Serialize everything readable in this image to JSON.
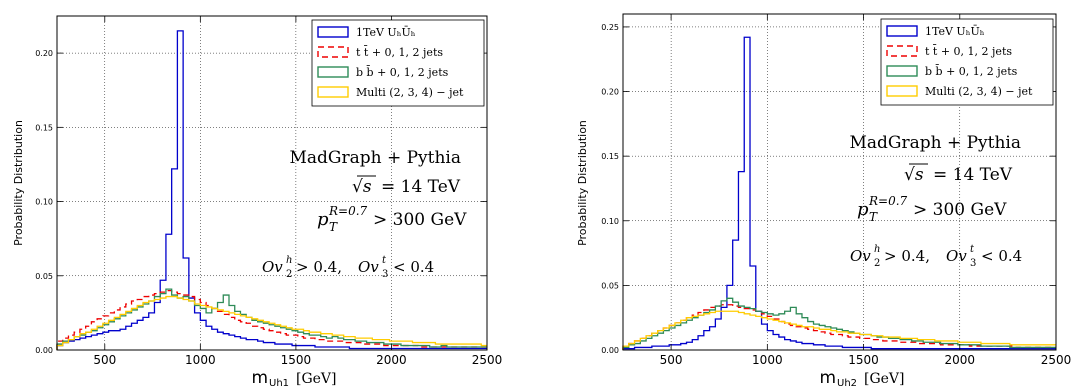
{
  "chart_data": [
    {
      "type": "histogram",
      "id": "left",
      "xlabel_main": "m",
      "xlabel_sub": "Uh1",
      "xlabel_unit": "[GeV]",
      "ylabel": "Probability Distribution",
      "xlim": [
        250,
        2500
      ],
      "ylim": [
        0,
        0.225
      ],
      "xticks": [
        500,
        1000,
        1500,
        2000,
        2500
      ],
      "xtick_labels": [
        "500",
        "1000",
        "1500",
        "2000",
        "2500"
      ],
      "yticks": [
        0,
        0.05,
        0.1,
        0.15,
        0.2
      ],
      "ytick_labels": [
        "0.00",
        "0.05",
        "0.10",
        "0.15",
        "0.20"
      ],
      "grid": true,
      "legend_position": "top-right",
      "annotations": {
        "generator": "MadGraph + Pythia",
        "sqrt": "√s",
        "energy": "= 14 TeV",
        "pt_base": "p",
        "pt_sup": "R=0.7",
        "pt_sub": "T",
        "pt_rest": "> 300 GeV",
        "cut_a_base": "Ov",
        "cut_a_sup": "h",
        "cut_a_sub": "2",
        "cut_a_rest": "> 0.4,",
        "cut_b_base": "Ov",
        "cut_b_sup": "t",
        "cut_b_sub": "3",
        "cut_b_rest": "< 0.4"
      },
      "bin_start": 250,
      "bin_width": 30,
      "series": [
        {
          "name": "1TeV UₕŪₕ",
          "color": "#0000cc",
          "dash": "",
          "values": [
            0.003,
            0.005,
            0.006,
            0.007,
            0.008,
            0.009,
            0.01,
            0.011,
            0.012,
            0.013,
            0.013,
            0.014,
            0.016,
            0.018,
            0.02,
            0.022,
            0.025,
            0.032,
            0.047,
            0.078,
            0.122,
            0.215,
            0.062,
            0.035,
            0.025,
            0.02,
            0.016,
            0.014,
            0.012,
            0.011,
            0.01,
            0.009,
            0.008,
            0.007,
            0.007,
            0.006,
            0.005,
            0.005,
            0.004,
            0.004,
            0.004,
            0.003,
            0.003,
            0.003,
            0.003,
            0.002,
            0.002,
            0.002,
            0.002,
            0.002,
            0.002,
            0.001,
            0.001,
            0.001,
            0.001,
            0.001,
            0.001,
            0.001,
            0.001,
            0.001,
            0.001,
            0.001,
            0.001,
            0.001,
            0.001,
            0.001,
            0.001,
            0.001,
            0.001,
            0.001,
            0.001,
            0.001,
            0.001,
            0.001,
            0.001
          ]
        },
        {
          "name": "t t̄ + 0, 1, 2  jets",
          "color": "#ee0000",
          "dash": "6,4",
          "values": [
            0.006,
            0.008,
            0.01,
            0.012,
            0.014,
            0.016,
            0.019,
            0.021,
            0.023,
            0.025,
            0.027,
            0.029,
            0.031,
            0.033,
            0.034,
            0.036,
            0.037,
            0.038,
            0.039,
            0.04,
            0.039,
            0.038,
            0.037,
            0.036,
            0.034,
            0.032,
            0.03,
            0.028,
            0.026,
            0.024,
            0.022,
            0.02,
            0.019,
            0.018,
            0.016,
            0.015,
            0.014,
            0.013,
            0.012,
            0.011,
            0.01,
            0.01,
            0.009,
            0.008,
            0.008,
            0.007,
            0.007,
            0.006,
            0.006,
            0.006,
            0.005,
            0.005,
            0.005,
            0.004,
            0.004,
            0.004,
            0.004,
            0.003,
            0.003,
            0.003,
            0.003,
            0.003,
            0.003,
            0.002,
            0.002,
            0.002,
            0.002,
            0.002,
            0.002,
            0.002,
            0.002,
            0.002,
            0.002,
            0.002,
            0.002
          ]
        },
        {
          "name": "b b̄ + 0, 1, 2  jets",
          "color": "#2e8b57",
          "dash": "",
          "values": [
            0.004,
            0.006,
            0.007,
            0.009,
            0.01,
            0.012,
            0.013,
            0.015,
            0.017,
            0.019,
            0.021,
            0.023,
            0.025,
            0.027,
            0.029,
            0.031,
            0.033,
            0.036,
            0.038,
            0.041,
            0.037,
            0.035,
            0.036,
            0.033,
            0.03,
            0.028,
            0.025,
            0.028,
            0.032,
            0.037,
            0.03,
            0.026,
            0.024,
            0.022,
            0.02,
            0.019,
            0.018,
            0.017,
            0.016,
            0.015,
            0.014,
            0.013,
            0.012,
            0.011,
            0.01,
            0.01,
            0.009,
            0.008,
            0.009,
            0.008,
            0.007,
            0.007,
            0.006,
            0.006,
            0.005,
            0.005,
            0.005,
            0.004,
            0.004,
            0.004,
            0.003,
            0.003,
            0.003,
            0.003,
            0.003,
            0.002,
            0.002,
            0.003,
            0.002,
            0.002,
            0.002,
            0.002,
            0.002,
            0.002,
            0.002
          ]
        },
        {
          "name": "Multi (2, 3, 4) − jet",
          "color": "#ffcc00",
          "dash": "",
          "values": [
            0.003,
            0.005,
            0.007,
            0.009,
            0.011,
            0.012,
            0.014,
            0.016,
            0.018,
            0.02,
            0.022,
            0.024,
            0.026,
            0.028,
            0.03,
            0.032,
            0.033,
            0.034,
            0.035,
            0.036,
            0.036,
            0.035,
            0.034,
            0.033,
            0.031,
            0.03,
            0.029,
            0.028,
            0.027,
            0.026,
            0.025,
            0.024,
            0.023,
            0.022,
            0.021,
            0.02,
            0.019,
            0.018,
            0.017,
            0.016,
            0.015,
            0.014,
            0.014,
            0.013,
            0.012,
            0.012,
            0.011,
            0.011,
            0.01,
            0.01,
            0.009,
            0.009,
            0.008,
            0.008,
            0.008,
            0.007,
            0.007,
            0.007,
            0.006,
            0.006,
            0.006,
            0.006,
            0.005,
            0.005,
            0.005,
            0.005,
            0.004,
            0.004,
            0.004,
            0.004,
            0.004,
            0.004,
            0.004,
            0.004,
            0.003
          ]
        }
      ]
    },
    {
      "type": "histogram",
      "id": "right",
      "xlabel_main": "m",
      "xlabel_sub": "Uh2",
      "xlabel_unit": "[GeV]",
      "ylabel": "Probability Distribution",
      "xlim": [
        250,
        2500
      ],
      "ylim": [
        0,
        0.26
      ],
      "xticks": [
        500,
        1000,
        1500,
        2000,
        2500
      ],
      "xtick_labels": [
        "500",
        "1000",
        "1500",
        "2000",
        "2500"
      ],
      "yticks": [
        0,
        0.05,
        0.1,
        0.15,
        0.2,
        0.25
      ],
      "ytick_labels": [
        "0.00",
        "0.05",
        "0.10",
        "0.15",
        "0.20",
        "0.25"
      ],
      "grid": true,
      "legend_position": "top-right",
      "annotations": {
        "generator": "MadGraph + Pythia",
        "sqrt": "√s",
        "energy": "= 14 TeV",
        "pt_base": "p",
        "pt_sup": "R=0.7",
        "pt_sub": "T",
        "pt_rest": "> 300 GeV",
        "cut_a_base": "Ov",
        "cut_a_sup": "h",
        "cut_a_sub": "2",
        "cut_a_rest": "> 0.4,",
        "cut_b_base": "Ov",
        "cut_b_sup": "t",
        "cut_b_sub": "3",
        "cut_b_rest": "< 0.4"
      },
      "bin_start": 250,
      "bin_width": 30,
      "series": [
        {
          "name": "1TeV UₕŪₕ",
          "color": "#0000cc",
          "dash": "",
          "values": [
            0.001,
            0.001,
            0.002,
            0.002,
            0.002,
            0.003,
            0.003,
            0.003,
            0.004,
            0.004,
            0.005,
            0.006,
            0.008,
            0.011,
            0.015,
            0.018,
            0.024,
            0.033,
            0.05,
            0.085,
            0.138,
            0.242,
            0.065,
            0.03,
            0.02,
            0.015,
            0.012,
            0.01,
            0.008,
            0.007,
            0.006,
            0.005,
            0.005,
            0.004,
            0.004,
            0.003,
            0.003,
            0.003,
            0.002,
            0.002,
            0.002,
            0.002,
            0.002,
            0.001,
            0.001,
            0.001,
            0.001,
            0.001,
            0.001,
            0.001,
            0.001,
            0.001,
            0.001,
            0.001,
            0.001,
            0.001,
            0.001,
            0.001,
            0.001,
            0.001,
            0.001,
            0.001,
            0.001,
            0.001,
            0.001,
            0.001,
            0.001,
            0.001,
            0.001,
            0.001,
            0.001,
            0.001,
            0.001,
            0.001,
            0.001
          ]
        },
        {
          "name": "t t̄ + 0, 1, 2  jets",
          "color": "#ee0000",
          "dash": "6,4",
          "values": [
            0.003,
            0.005,
            0.007,
            0.009,
            0.011,
            0.013,
            0.015,
            0.017,
            0.019,
            0.021,
            0.023,
            0.025,
            0.027,
            0.029,
            0.031,
            0.033,
            0.034,
            0.035,
            0.035,
            0.034,
            0.033,
            0.032,
            0.031,
            0.03,
            0.028,
            0.026,
            0.024,
            0.022,
            0.02,
            0.019,
            0.018,
            0.017,
            0.016,
            0.015,
            0.014,
            0.013,
            0.012,
            0.012,
            0.011,
            0.01,
            0.01,
            0.009,
            0.009,
            0.008,
            0.008,
            0.007,
            0.007,
            0.007,
            0.006,
            0.006,
            0.006,
            0.005,
            0.005,
            0.005,
            0.005,
            0.004,
            0.004,
            0.004,
            0.004,
            0.004,
            0.003,
            0.003,
            0.003,
            0.003,
            0.003,
            0.003,
            0.003,
            0.003,
            0.002,
            0.002,
            0.002,
            0.002,
            0.002,
            0.002,
            0.002
          ]
        },
        {
          "name": "b b̄ + 0, 1, 2  jets",
          "color": "#2e8b57",
          "dash": "",
          "values": [
            0.002,
            0.004,
            0.005,
            0.007,
            0.009,
            0.011,
            0.013,
            0.015,
            0.017,
            0.019,
            0.021,
            0.023,
            0.025,
            0.027,
            0.029,
            0.031,
            0.034,
            0.038,
            0.04,
            0.037,
            0.034,
            0.033,
            0.032,
            0.03,
            0.029,
            0.028,
            0.027,
            0.028,
            0.03,
            0.033,
            0.028,
            0.025,
            0.022,
            0.02,
            0.019,
            0.018,
            0.017,
            0.016,
            0.015,
            0.014,
            0.013,
            0.012,
            0.012,
            0.011,
            0.01,
            0.01,
            0.009,
            0.009,
            0.008,
            0.008,
            0.007,
            0.007,
            0.006,
            0.006,
            0.006,
            0.005,
            0.005,
            0.005,
            0.004,
            0.004,
            0.004,
            0.004,
            0.003,
            0.003,
            0.003,
            0.003,
            0.003,
            0.002,
            0.002,
            0.002,
            0.002,
            0.002,
            0.002,
            0.002,
            0.002
          ]
        },
        {
          "name": "Multi (2, 3, 4) − jet",
          "color": "#ffcc00",
          "dash": "",
          "values": [
            0.003,
            0.005,
            0.007,
            0.009,
            0.011,
            0.013,
            0.015,
            0.017,
            0.019,
            0.021,
            0.023,
            0.025,
            0.026,
            0.027,
            0.028,
            0.029,
            0.03,
            0.03,
            0.03,
            0.03,
            0.029,
            0.028,
            0.027,
            0.026,
            0.025,
            0.024,
            0.023,
            0.022,
            0.021,
            0.02,
            0.019,
            0.018,
            0.018,
            0.017,
            0.016,
            0.016,
            0.015,
            0.014,
            0.014,
            0.013,
            0.013,
            0.012,
            0.012,
            0.011,
            0.011,
            0.01,
            0.01,
            0.01,
            0.009,
            0.009,
            0.009,
            0.008,
            0.008,
            0.008,
            0.007,
            0.007,
            0.007,
            0.007,
            0.006,
            0.006,
            0.006,
            0.006,
            0.005,
            0.005,
            0.005,
            0.005,
            0.005,
            0.004,
            0.004,
            0.004,
            0.004,
            0.004,
            0.004,
            0.004,
            0.004
          ]
        }
      ]
    }
  ]
}
